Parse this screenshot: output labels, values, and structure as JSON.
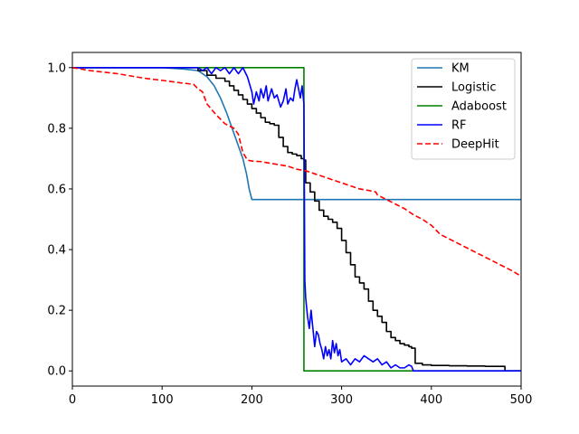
{
  "chart_data": {
    "type": "line",
    "title": "",
    "xlabel": "",
    "ylabel": "",
    "xlim": [
      0,
      500
    ],
    "ylim": [
      -0.05,
      1.05
    ],
    "xticks": [
      0,
      100,
      200,
      300,
      400,
      500
    ],
    "yticks": [
      0.0,
      0.2,
      0.4,
      0.6,
      0.8,
      1.0
    ],
    "xtick_labels": [
      "0",
      "100",
      "200",
      "300",
      "400",
      "500"
    ],
    "ytick_labels": [
      "0.0",
      "0.2",
      "0.4",
      "0.6",
      "0.8",
      "1.0"
    ],
    "grid": false,
    "legend_position": "top-right",
    "series": [
      {
        "name": "KM",
        "color": "#1f77b4",
        "dash": "solid",
        "step": false,
        "points": [
          [
            0,
            1.0
          ],
          [
            100,
            1.0
          ],
          [
            125,
            0.995
          ],
          [
            140,
            0.99
          ],
          [
            150,
            0.97
          ],
          [
            158,
            0.94
          ],
          [
            165,
            0.9
          ],
          [
            172,
            0.85
          ],
          [
            178,
            0.8
          ],
          [
            184,
            0.75
          ],
          [
            190,
            0.7
          ],
          [
            194,
            0.65
          ],
          [
            197,
            0.6
          ],
          [
            200,
            0.565
          ],
          [
            500,
            0.565
          ]
        ]
      },
      {
        "name": "Logistic",
        "color": "#000000",
        "dash": "solid",
        "step": true,
        "points": [
          [
            0,
            1.0
          ],
          [
            130,
            1.0
          ],
          [
            140,
            0.99
          ],
          [
            150,
            0.975
          ],
          [
            160,
            0.965
          ],
          [
            170,
            0.955
          ],
          [
            175,
            0.94
          ],
          [
            180,
            0.925
          ],
          [
            185,
            0.91
          ],
          [
            190,
            0.895
          ],
          [
            195,
            0.88
          ],
          [
            200,
            0.865
          ],
          [
            205,
            0.85
          ],
          [
            210,
            0.835
          ],
          [
            215,
            0.82
          ],
          [
            220,
            0.815
          ],
          [
            225,
            0.81
          ],
          [
            230,
            0.77
          ],
          [
            235,
            0.74
          ],
          [
            240,
            0.72
          ],
          [
            245,
            0.715
          ],
          [
            250,
            0.71
          ],
          [
            255,
            0.7
          ],
          [
            258,
            0.695
          ],
          [
            260,
            0.62
          ],
          [
            265,
            0.59
          ],
          [
            270,
            0.56
          ],
          [
            275,
            0.53
          ],
          [
            280,
            0.51
          ],
          [
            285,
            0.5
          ],
          [
            290,
            0.49
          ],
          [
            295,
            0.47
          ],
          [
            300,
            0.43
          ],
          [
            305,
            0.39
          ],
          [
            310,
            0.35
          ],
          [
            315,
            0.31
          ],
          [
            320,
            0.29
          ],
          [
            325,
            0.27
          ],
          [
            330,
            0.23
          ],
          [
            335,
            0.2
          ],
          [
            340,
            0.18
          ],
          [
            345,
            0.16
          ],
          [
            350,
            0.13
          ],
          [
            355,
            0.11
          ],
          [
            360,
            0.1
          ],
          [
            365,
            0.09
          ],
          [
            370,
            0.085
          ],
          [
            375,
            0.08
          ],
          [
            378,
            0.075
          ],
          [
            382,
            0.025
          ],
          [
            390,
            0.02
          ],
          [
            400,
            0.018
          ],
          [
            420,
            0.017
          ],
          [
            440,
            0.016
          ],
          [
            460,
            0.015
          ],
          [
            480,
            0.015
          ],
          [
            482,
            0.0
          ],
          [
            500,
            0.0
          ]
        ]
      },
      {
        "name": "Adaboost",
        "color": "#008000",
        "dash": "solid",
        "step": true,
        "points": [
          [
            0,
            1.0
          ],
          [
            258,
            1.0
          ],
          [
            258,
            0.0
          ],
          [
            500,
            0.0
          ]
        ]
      },
      {
        "name": "RF",
        "color": "#0000ff",
        "dash": "solid",
        "step": false,
        "points": [
          [
            0,
            1.0
          ],
          [
            140,
            1.0
          ],
          [
            145,
            0.99
          ],
          [
            150,
            1.0
          ],
          [
            155,
            0.98
          ],
          [
            160,
            1.0
          ],
          [
            165,
            0.99
          ],
          [
            170,
            1.0
          ],
          [
            175,
            0.98
          ],
          [
            180,
            1.0
          ],
          [
            185,
            0.98
          ],
          [
            190,
            1.0
          ],
          [
            195,
            0.97
          ],
          [
            200,
            0.92
          ],
          [
            202,
            0.88
          ],
          [
            205,
            0.92
          ],
          [
            208,
            0.89
          ],
          [
            210,
            0.93
          ],
          [
            213,
            0.9
          ],
          [
            216,
            0.94
          ],
          [
            218,
            0.89
          ],
          [
            222,
            0.93
          ],
          [
            225,
            0.9
          ],
          [
            228,
            0.91
          ],
          [
            232,
            0.87
          ],
          [
            235,
            0.89
          ],
          [
            238,
            0.93
          ],
          [
            240,
            0.88
          ],
          [
            243,
            0.9
          ],
          [
            246,
            0.89
          ],
          [
            248,
            0.93
          ],
          [
            250,
            0.96
          ],
          [
            252,
            0.93
          ],
          [
            254,
            0.9
          ],
          [
            256,
            0.94
          ],
          [
            258,
            0.88
          ],
          [
            259,
            0.3
          ],
          [
            260,
            0.24
          ],
          [
            262,
            0.18
          ],
          [
            264,
            0.14
          ],
          [
            266,
            0.2
          ],
          [
            268,
            0.14
          ],
          [
            270,
            0.08
          ],
          [
            272,
            0.13
          ],
          [
            274,
            0.12
          ],
          [
            276,
            0.09
          ],
          [
            278,
            0.07
          ],
          [
            280,
            0.04
          ],
          [
            282,
            0.08
          ],
          [
            284,
            0.05
          ],
          [
            286,
            0.07
          ],
          [
            288,
            0.04
          ],
          [
            290,
            0.1
          ],
          [
            292,
            0.06
          ],
          [
            294,
            0.09
          ],
          [
            296,
            0.05
          ],
          [
            298,
            0.07
          ],
          [
            300,
            0.03
          ],
          [
            305,
            0.04
          ],
          [
            310,
            0.02
          ],
          [
            315,
            0.04
          ],
          [
            320,
            0.03
          ],
          [
            325,
            0.05
          ],
          [
            330,
            0.04
          ],
          [
            335,
            0.03
          ],
          [
            340,
            0.04
          ],
          [
            345,
            0.02
          ],
          [
            350,
            0.03
          ],
          [
            355,
            0.01
          ],
          [
            360,
            0.02
          ],
          [
            365,
            0.01
          ],
          [
            370,
            0.01
          ],
          [
            375,
            0.02
          ],
          [
            378,
            0.015
          ],
          [
            380,
            0.0
          ],
          [
            500,
            0.0
          ]
        ]
      },
      {
        "name": "DeepHit",
        "color": "#ff0000",
        "dash": "dashed",
        "step": false,
        "points": [
          [
            0,
            1.0
          ],
          [
            20,
            0.99
          ],
          [
            50,
            0.98
          ],
          [
            80,
            0.965
          ],
          [
            100,
            0.958
          ],
          [
            120,
            0.95
          ],
          [
            135,
            0.945
          ],
          [
            140,
            0.93
          ],
          [
            145,
            0.92
          ],
          [
            150,
            0.88
          ],
          [
            160,
            0.845
          ],
          [
            170,
            0.815
          ],
          [
            180,
            0.8
          ],
          [
            185,
            0.78
          ],
          [
            190,
            0.72
          ],
          [
            195,
            0.695
          ],
          [
            200,
            0.692
          ],
          [
            210,
            0.69
          ],
          [
            220,
            0.685
          ],
          [
            230,
            0.68
          ],
          [
            240,
            0.675
          ],
          [
            250,
            0.665
          ],
          [
            260,
            0.66
          ],
          [
            270,
            0.65
          ],
          [
            280,
            0.64
          ],
          [
            290,
            0.63
          ],
          [
            300,
            0.62
          ],
          [
            310,
            0.61
          ],
          [
            320,
            0.6
          ],
          [
            330,
            0.595
          ],
          [
            338,
            0.59
          ],
          [
            340,
            0.58
          ],
          [
            350,
            0.565
          ],
          [
            360,
            0.55
          ],
          [
            370,
            0.535
          ],
          [
            380,
            0.515
          ],
          [
            390,
            0.5
          ],
          [
            400,
            0.48
          ],
          [
            410,
            0.45
          ],
          [
            420,
            0.435
          ],
          [
            430,
            0.42
          ],
          [
            440,
            0.405
          ],
          [
            450,
            0.39
          ],
          [
            460,
            0.375
          ],
          [
            470,
            0.36
          ],
          [
            480,
            0.345
          ],
          [
            490,
            0.33
          ],
          [
            500,
            0.312
          ]
        ]
      }
    ]
  }
}
